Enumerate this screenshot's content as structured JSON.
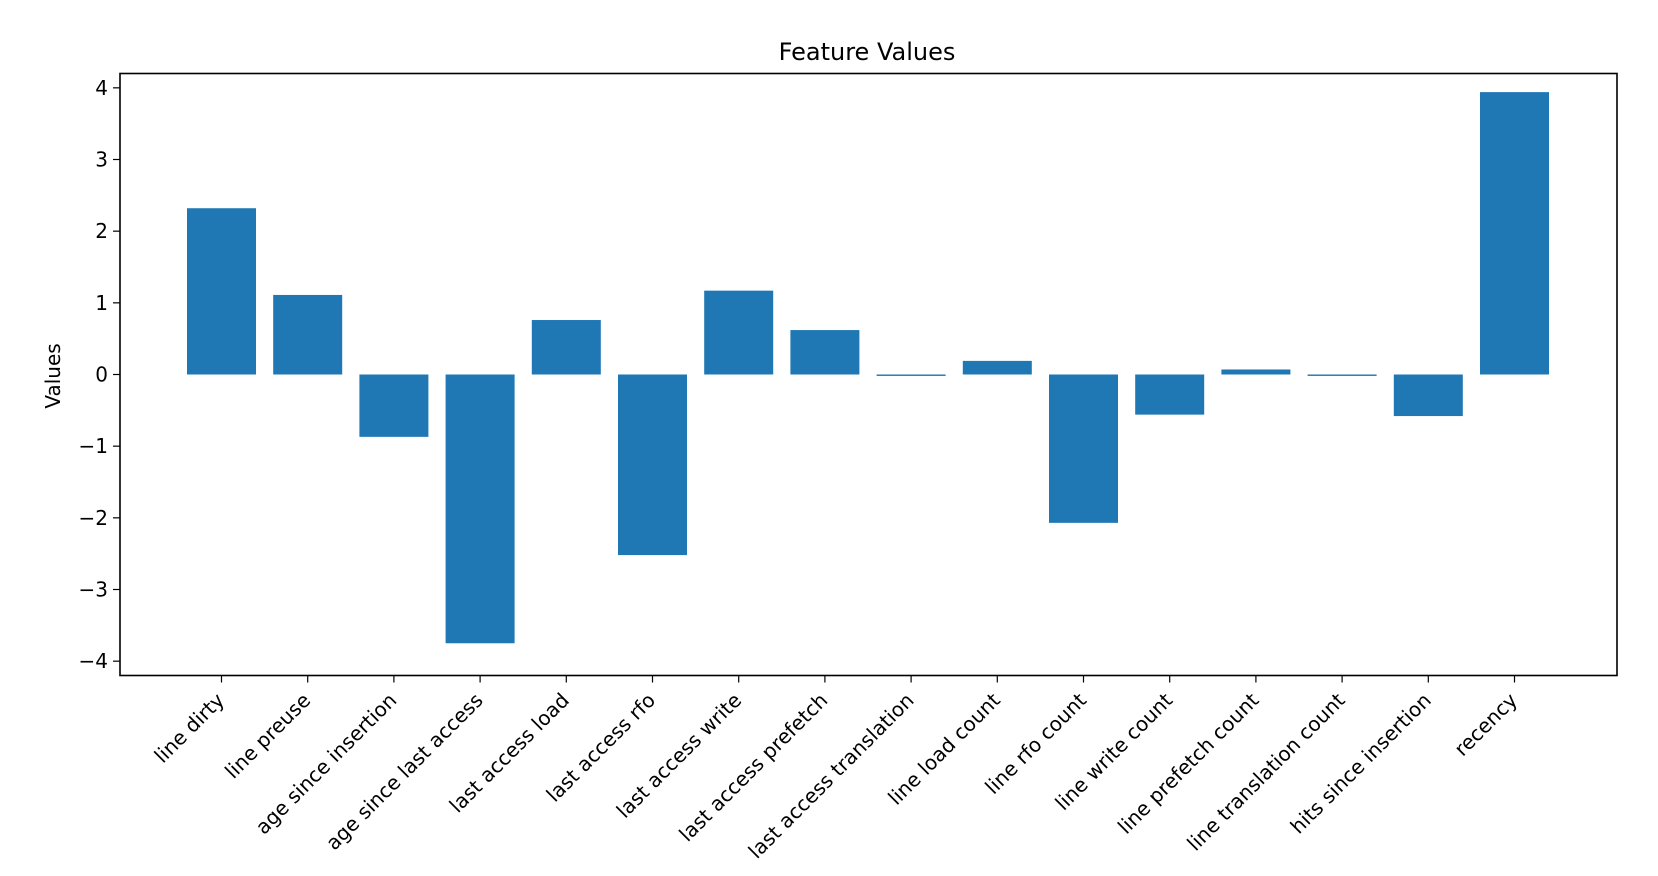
{
  "chart_data": {
    "type": "bar",
    "title": "Feature Values",
    "xlabel": "",
    "ylabel": "Values",
    "ylim": [
      -4.2,
      4.2
    ],
    "yticks": [
      4,
      3,
      2,
      1,
      0,
      -1,
      -2,
      -3,
      -4
    ],
    "ytick_labels": [
      "4",
      "3",
      "2",
      "1",
      "0",
      "−1",
      "−2",
      "−3",
      "−4"
    ],
    "categories": [
      "line dirty",
      "line preuse",
      "age since insertion",
      "age since last access",
      "last access load",
      "last access rfo",
      "last access write",
      "last access prefetch",
      "last access translation",
      "line load count",
      "line rfo count",
      "line write count",
      "line prefetch count",
      "line translation count",
      "hits since insertion",
      "recency"
    ],
    "values": [
      2.32,
      1.11,
      -0.87,
      -3.75,
      0.76,
      -2.52,
      1.17,
      0.62,
      -0.02,
      0.19,
      -2.07,
      -0.56,
      0.07,
      -0.02,
      -0.58,
      3.94
    ],
    "bar_color": "#1f77b4",
    "grid": false
  }
}
